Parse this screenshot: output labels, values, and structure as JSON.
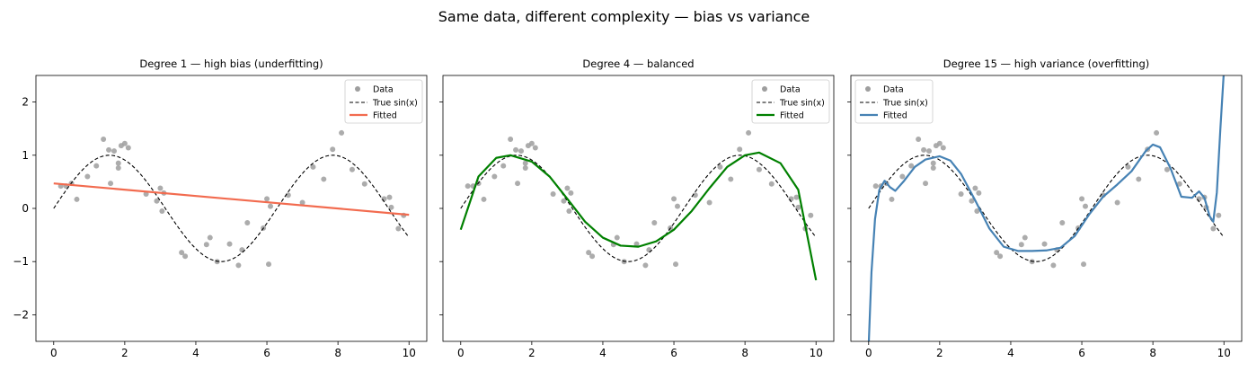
{
  "suptitle": "Same data, different complexity — bias vs variance",
  "colors": {
    "data": "#9e9e9e",
    "true_curve": "#000000",
    "fit_degree_1": "#f26b4f",
    "fit_degree_4": "#008000",
    "fit_degree_15": "#4682b4"
  },
  "chart_data": [
    {
      "type": "line",
      "title": "Degree 1 — high bias (underfitting)",
      "xlabel": "",
      "ylabel": "",
      "xlim": [
        -0.5,
        10.5
      ],
      "ylim": [
        -2.5,
        2.5
      ],
      "xticks": [
        0,
        2,
        4,
        6,
        8,
        10
      ],
      "yticks": [
        -2,
        -1,
        0,
        1,
        2
      ],
      "grid": false,
      "legend_position": "top-right",
      "legend": [
        "Data",
        "True sin(x)",
        "Fitted"
      ],
      "series": [
        {
          "name": "Data",
          "kind": "scatter",
          "ref": "shared_data"
        },
        {
          "name": "True sin(x)",
          "kind": "line",
          "style": "dashed",
          "function": "sin(x)",
          "x_range": [
            0,
            10
          ]
        },
        {
          "name": "Fitted",
          "kind": "line",
          "color": "#f26b4f",
          "x": [
            0,
            10
          ],
          "y": [
            0.47,
            -0.12
          ]
        }
      ]
    },
    {
      "type": "line",
      "title": "Degree 4 — balanced",
      "xlabel": "",
      "ylabel": "",
      "xlim": [
        -0.5,
        10.5
      ],
      "ylim": [
        -2.5,
        2.5
      ],
      "xticks": [
        0,
        2,
        4,
        6,
        8,
        10
      ],
      "yticks": [
        -2,
        -1,
        0,
        1,
        2
      ],
      "grid": false,
      "legend_position": "top-right",
      "legend": [
        "Data",
        "True sin(x)",
        "Fitted"
      ],
      "series": [
        {
          "name": "Data",
          "kind": "scatter",
          "ref": "shared_data"
        },
        {
          "name": "True sin(x)",
          "kind": "line",
          "style": "dashed",
          "function": "sin(x)",
          "x_range": [
            0,
            10
          ]
        },
        {
          "name": "Fitted",
          "kind": "line",
          "color": "#008000",
          "x": [
            0,
            0.5,
            1,
            1.4,
            2,
            2.5,
            3,
            3.5,
            4,
            4.5,
            5,
            5.5,
            6,
            6.5,
            7,
            7.5,
            8,
            8.4,
            9,
            9.5,
            10
          ],
          "y": [
            -0.4,
            0.6,
            0.95,
            1.0,
            0.88,
            0.6,
            0.18,
            -0.25,
            -0.55,
            -0.7,
            -0.72,
            -0.62,
            -0.4,
            -0.05,
            0.38,
            0.78,
            1.0,
            1.05,
            0.85,
            0.35,
            -1.35
          ]
        }
      ]
    },
    {
      "type": "line",
      "title": "Degree 15 — high variance (overfitting)",
      "xlabel": "",
      "ylabel": "",
      "xlim": [
        -0.5,
        10.5
      ],
      "ylim": [
        -2.5,
        2.5
      ],
      "xticks": [
        0,
        2,
        4,
        6,
        8,
        10
      ],
      "yticks": [
        -2,
        -1,
        0,
        1,
        2
      ],
      "grid": false,
      "legend_position": "top-left",
      "legend": [
        "Data",
        "True sin(x)",
        "Fitted"
      ],
      "series": [
        {
          "name": "Data",
          "kind": "scatter",
          "ref": "shared_data"
        },
        {
          "name": "True sin(x)",
          "kind": "line",
          "style": "dashed",
          "function": "sin(x)",
          "x_range": [
            0,
            10
          ]
        },
        {
          "name": "Fitted",
          "kind": "line",
          "color": "#4682b4",
          "x": [
            0,
            0.08,
            0.18,
            0.3,
            0.45,
            0.6,
            0.75,
            1.0,
            1.3,
            1.6,
            2.0,
            2.3,
            2.6,
            3.0,
            3.4,
            3.8,
            4.2,
            4.6,
            5.0,
            5.4,
            5.8,
            6.2,
            6.6,
            7.0,
            7.4,
            7.8,
            8.0,
            8.2,
            8.5,
            8.8,
            9.1,
            9.3,
            9.45,
            9.6,
            9.7,
            9.8,
            9.9,
            10.0
          ],
          "y": [
            -2.6,
            -1.2,
            -0.2,
            0.35,
            0.52,
            0.4,
            0.33,
            0.52,
            0.78,
            0.92,
            0.98,
            0.9,
            0.65,
            0.15,
            -0.38,
            -0.72,
            -0.8,
            -0.8,
            -0.79,
            -0.74,
            -0.52,
            -0.12,
            0.22,
            0.45,
            0.7,
            1.08,
            1.2,
            1.15,
            0.75,
            0.22,
            0.2,
            0.32,
            0.2,
            -0.15,
            -0.25,
            0.3,
            1.5,
            2.6
          ]
        }
      ]
    }
  ],
  "shared_data": {
    "x": [
      0.2,
      0.35,
      0.5,
      0.65,
      0.95,
      1.2,
      1.4,
      1.55,
      1.6,
      1.7,
      1.82,
      1.82,
      1.9,
      2.0,
      2.1,
      2.6,
      2.9,
      3.0,
      3.05,
      3.1,
      3.6,
      3.7,
      4.3,
      4.4,
      4.6,
      4.95,
      5.2,
      5.3,
      5.45,
      5.9,
      6.05,
      6.0,
      6.1,
      6.6,
      7.0,
      7.3,
      7.6,
      7.85,
      8.1,
      8.4,
      8.75,
      9.3,
      9.45,
      9.5,
      9.7,
      9.85
    ],
    "y": [
      0.42,
      0.42,
      0.47,
      0.17,
      0.6,
      0.8,
      1.3,
      1.1,
      0.47,
      1.08,
      0.85,
      0.76,
      1.18,
      1.22,
      1.14,
      0.27,
      0.14,
      0.38,
      -0.05,
      0.29,
      -0.83,
      -0.9,
      -0.68,
      -0.55,
      -1.0,
      -0.67,
      -1.07,
      -0.78,
      -0.27,
      -0.37,
      -1.05,
      0.18,
      0.04,
      0.25,
      0.11,
      0.78,
      0.55,
      1.11,
      1.42,
      0.73,
      0.46,
      0.18,
      0.21,
      0.02,
      -0.38,
      -0.13
    ]
  }
}
